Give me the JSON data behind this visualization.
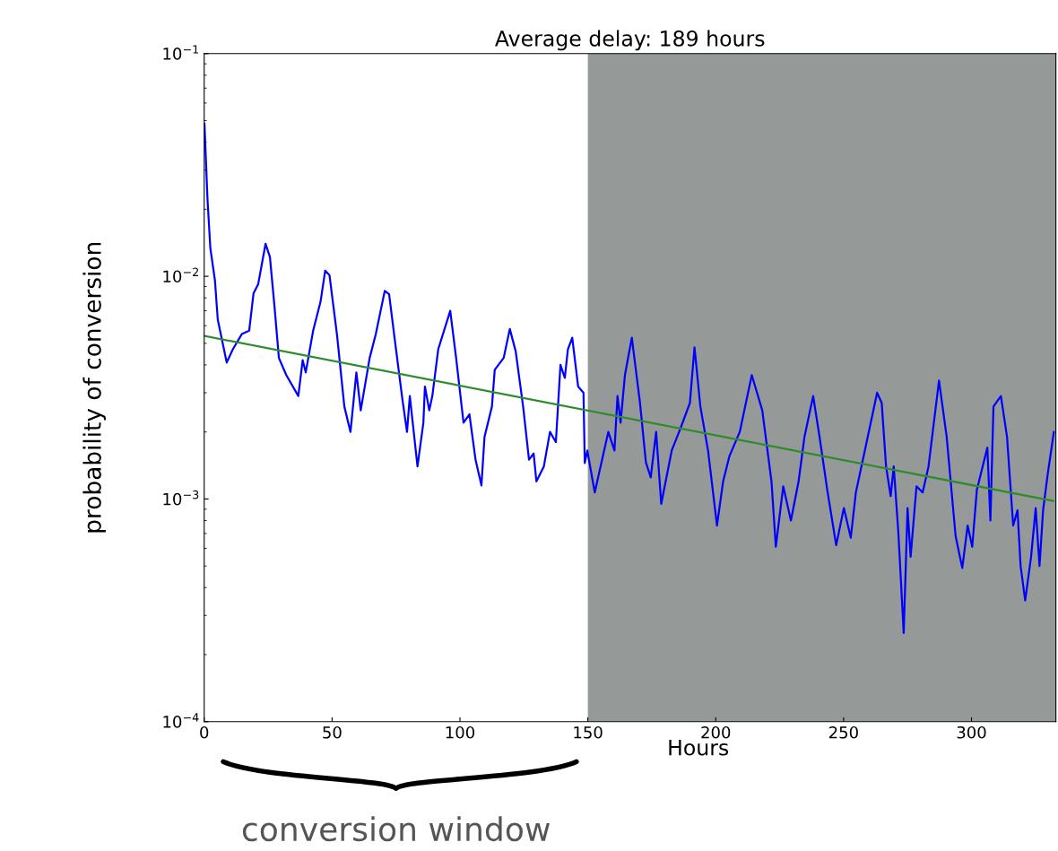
{
  "chart_data": {
    "type": "line",
    "title": "Average delay: 189 hours",
    "xlabel": "Hours",
    "ylabel": "probability of conversion",
    "log": "y",
    "xlim": [
      0,
      333
    ],
    "ylim": [
      0.0001,
      0.1
    ],
    "xticks": [
      0,
      50,
      100,
      150,
      200,
      250,
      300
    ],
    "yticks": [
      {
        "value": 0.0001,
        "label": "10$^{−4}$"
      },
      {
        "value": 0.001,
        "label": "10$^{−3}$"
      },
      {
        "value": 0.01,
        "label": "10$^{−2}$"
      },
      {
        "value": 0.1,
        "label": "10$^{−1}$"
      }
    ],
    "grid": false,
    "legend": false,
    "marker": "none",
    "line_style": "solid",
    "bands": [
      {
        "axis": "x",
        "from": 150,
        "to": 333,
        "color": "#959a99"
      }
    ],
    "annotations": [
      "conversion window"
    ],
    "series": [
      {
        "color": "#0000ff",
        "x": [
          0.1,
          1.3,
          2.4,
          4.2,
          5.3,
          8.8,
          11.2,
          14.7,
          17.6,
          19.3,
          21.1,
          24.0,
          25.7,
          27.5,
          29.2,
          32.1,
          36.8,
          38.5,
          39.7,
          42.6,
          45.5,
          47.3,
          49.0,
          51.9,
          54.8,
          57.2,
          59.5,
          61.2,
          64.7,
          67.1,
          70.6,
          72.3,
          74.6,
          77.5,
          79.3,
          80.4,
          83.4,
          85.7,
          86.3,
          88.0,
          89.2,
          91.5,
          96.2,
          98.5,
          101.4,
          103.7,
          106.1,
          108.4,
          109.6,
          112.5,
          113.6,
          117.1,
          119.5,
          121.8,
          124.7,
          127.0,
          128.8,
          129.9,
          132.8,
          135.2,
          137.5,
          139.3,
          141.0,
          142.2,
          143.9,
          146.2,
          148.3,
          148.8,
          149.8,
          152.7,
          158.0,
          160.4,
          161.6,
          162.8,
          164.5,
          167.2,
          170.4,
          172.7,
          174.6,
          176.7,
          178.7,
          182.8,
          186.4,
          189.9,
          191.7,
          194.0,
          197.0,
          200.5,
          202.9,
          205.3,
          209.4,
          214.1,
          218.2,
          221.8,
          223.5,
          226.4,
          229.4,
          232.4,
          234.7,
          238.1,
          240.6,
          243.6,
          247.1,
          250.1,
          252.8,
          254.8,
          258.3,
          263.1,
          264.9,
          266.6,
          268.4,
          269.6,
          271.4,
          273.5,
          275.0,
          276.2,
          278.5,
          280.9,
          283.2,
          287.3,
          290.3,
          293.8,
          296.4,
          298.5,
          300.3,
          302.1,
          306.2,
          307.4,
          308.6,
          311.5,
          313.9,
          316.3,
          318.0,
          319.2,
          321.0,
          323.3,
          325.1,
          326.6,
          328.0,
          329.8,
          332.2
        ],
        "values": [
          0.0485,
          0.0221,
          0.0134,
          0.0096,
          0.0064,
          0.0041,
          0.0047,
          0.0055,
          0.0057,
          0.0084,
          0.0092,
          0.014,
          0.0122,
          0.0073,
          0.0043,
          0.0036,
          0.0029,
          0.0042,
          0.0037,
          0.0057,
          0.0077,
          0.0106,
          0.0101,
          0.0055,
          0.0026,
          0.002,
          0.0037,
          0.0025,
          0.0043,
          0.0055,
          0.0086,
          0.0083,
          0.0051,
          0.0028,
          0.002,
          0.0029,
          0.0014,
          0.0022,
          0.0032,
          0.0025,
          0.0029,
          0.0047,
          0.007,
          0.0043,
          0.0022,
          0.0024,
          0.0015,
          0.00115,
          0.0019,
          0.0026,
          0.0038,
          0.0043,
          0.0058,
          0.0046,
          0.0026,
          0.0015,
          0.0016,
          0.0012,
          0.0014,
          0.002,
          0.0018,
          0.004,
          0.0035,
          0.0047,
          0.0053,
          0.0032,
          0.003,
          0.00145,
          0.00165,
          0.00107,
          0.002,
          0.00165,
          0.0029,
          0.0022,
          0.0036,
          0.0053,
          0.0027,
          0.00146,
          0.00125,
          0.002,
          0.00095,
          0.00165,
          0.0021,
          0.0027,
          0.0048,
          0.0026,
          0.00165,
          0.00076,
          0.0012,
          0.00155,
          0.002,
          0.0036,
          0.0025,
          0.0012,
          0.00061,
          0.00114,
          0.0008,
          0.0012,
          0.0019,
          0.0029,
          0.0019,
          0.0011,
          0.00062,
          0.00091,
          0.00067,
          0.00107,
          0.00165,
          0.003,
          0.0027,
          0.0014,
          0.00103,
          0.0014,
          0.00071,
          0.00025,
          0.00091,
          0.00055,
          0.00114,
          0.00107,
          0.0014,
          0.0034,
          0.0019,
          0.00068,
          0.00049,
          0.00076,
          0.00061,
          0.0011,
          0.0017,
          0.0008,
          0.0026,
          0.0029,
          0.0019,
          0.00076,
          0.00089,
          0.0005,
          0.00035,
          0.00055,
          0.00091,
          0.0005,
          0.00089,
          0.00129,
          0.002
        ]
      },
      {
        "color": "#2e8b2e",
        "type": "line",
        "x": [
          0,
          332
        ],
        "values": [
          0.0054,
          0.00098
        ]
      }
    ]
  }
}
